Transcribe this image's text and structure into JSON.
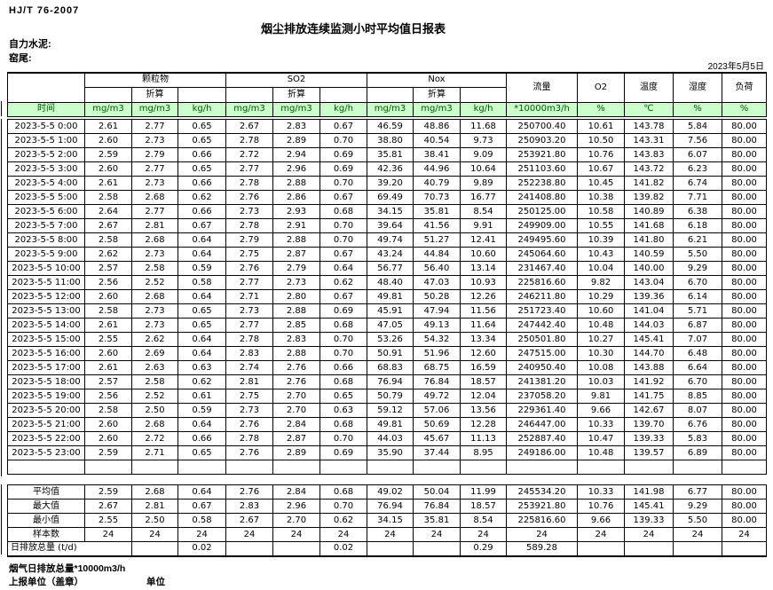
{
  "header": {
    "doc_code": "HJ/T 76-2007",
    "title": "烟尘排放连续监测小时平均值日报表",
    "company": "自力水泥:",
    "location": "窑尾:",
    "date": "2023年5月5日"
  },
  "table": {
    "time_header": "时间",
    "groups": [
      {
        "label": "颗粒物",
        "sub": "折算"
      },
      {
        "label": "SO2",
        "sub": "折算"
      },
      {
        "label": "Nox",
        "sub": "折算"
      }
    ],
    "singles": [
      {
        "label": "流量"
      },
      {
        "label": "O2"
      },
      {
        "label": "温度"
      },
      {
        "label": "湿度"
      },
      {
        "label": "负荷"
      }
    ],
    "units": [
      "mg/m3",
      "mg/m3",
      "kg/h",
      "mg/m3",
      "mg/m3",
      "kg/h",
      "mg/m3",
      "mg/m3",
      "kg/h",
      "*10000m3/h",
      "%",
      "℃",
      "%",
      "%"
    ],
    "rows": [
      {
        "time": "2023-5-5 0:00",
        "values": [
          "2.61",
          "2.77",
          "0.65",
          "2.67",
          "2.83",
          "0.67",
          "46.59",
          "48.86",
          "11.68",
          "250700.40",
          "10.61",
          "143.78",
          "5.84",
          "80.00"
        ]
      },
      {
        "time": "2023-5-5 1:00",
        "values": [
          "2.60",
          "2.73",
          "0.65",
          "2.78",
          "2.89",
          "0.70",
          "38.80",
          "40.54",
          "9.73",
          "250903.20",
          "10.50",
          "143.31",
          "7.56",
          "80.00"
        ]
      },
      {
        "time": "2023-5-5 2:00",
        "values": [
          "2.59",
          "2.79",
          "0.66",
          "2.72",
          "2.94",
          "0.69",
          "35.81",
          "38.41",
          "9.09",
          "253921.80",
          "10.76",
          "143.83",
          "6.07",
          "80.00"
        ]
      },
      {
        "time": "2023-5-5 3:00",
        "values": [
          "2.60",
          "2.77",
          "0.65",
          "2.77",
          "2.96",
          "0.69",
          "42.36",
          "44.96",
          "10.64",
          "251103.60",
          "10.67",
          "143.72",
          "6.23",
          "80.00"
        ]
      },
      {
        "time": "2023-5-5 4:00",
        "values": [
          "2.61",
          "2.73",
          "0.66",
          "2.78",
          "2.88",
          "0.70",
          "39.20",
          "40.79",
          "9.89",
          "252238.80",
          "10.45",
          "141.82",
          "6.74",
          "80.00"
        ]
      },
      {
        "time": "2023-5-5 5:00",
        "values": [
          "2.58",
          "2.68",
          "0.62",
          "2.76",
          "2.86",
          "0.67",
          "69.49",
          "70.73",
          "16.77",
          "241408.80",
          "10.38",
          "139.82",
          "7.71",
          "80.00"
        ]
      },
      {
        "time": "2023-5-5 6:00",
        "values": [
          "2.64",
          "2.77",
          "0.66",
          "2.73",
          "2.93",
          "0.68",
          "34.15",
          "35.81",
          "8.54",
          "250125.00",
          "10.58",
          "140.89",
          "6.38",
          "80.00"
        ]
      },
      {
        "time": "2023-5-5 7:00",
        "values": [
          "2.67",
          "2.81",
          "0.67",
          "2.78",
          "2.91",
          "0.70",
          "39.64",
          "41.56",
          "9.91",
          "249909.00",
          "10.55",
          "141.68",
          "6.18",
          "80.00"
        ]
      },
      {
        "time": "2023-5-5 8:00",
        "values": [
          "2.58",
          "2.68",
          "0.64",
          "2.79",
          "2.88",
          "0.70",
          "49.74",
          "51.27",
          "12.41",
          "249495.60",
          "10.39",
          "141.80",
          "6.21",
          "80.00"
        ]
      },
      {
        "time": "2023-5-5 9:00",
        "values": [
          "2.62",
          "2.73",
          "0.64",
          "2.75",
          "2.87",
          "0.67",
          "43.24",
          "44.84",
          "10.60",
          "245064.60",
          "10.43",
          "140.59",
          "5.50",
          "80.00"
        ]
      },
      {
        "time": "2023-5-5 10:00",
        "values": [
          "2.57",
          "2.58",
          "0.59",
          "2.76",
          "2.79",
          "0.64",
          "56.77",
          "56.40",
          "13.14",
          "231467.40",
          "10.04",
          "140.00",
          "9.29",
          "80.00"
        ]
      },
      {
        "time": "2023-5-5 11:00",
        "values": [
          "2.56",
          "2.52",
          "0.58",
          "2.77",
          "2.73",
          "0.62",
          "48.40",
          "47.03",
          "10.93",
          "225816.60",
          "9.82",
          "143.04",
          "6.70",
          "80.00"
        ]
      },
      {
        "time": "2023-5-5 12:00",
        "values": [
          "2.60",
          "2.68",
          "0.64",
          "2.71",
          "2.80",
          "0.67",
          "49.81",
          "50.28",
          "12.26",
          "246211.80",
          "10.29",
          "139.36",
          "6.14",
          "80.00"
        ]
      },
      {
        "time": "2023-5-5 13:00",
        "values": [
          "2.58",
          "2.73",
          "0.65",
          "2.73",
          "2.88",
          "0.69",
          "45.91",
          "47.94",
          "11.56",
          "251723.40",
          "10.60",
          "141.04",
          "5.71",
          "80.00"
        ]
      },
      {
        "time": "2023-5-5 14:00",
        "values": [
          "2.61",
          "2.73",
          "0.65",
          "2.77",
          "2.85",
          "0.68",
          "47.05",
          "49.13",
          "11.64",
          "247442.40",
          "10.48",
          "144.03",
          "6.87",
          "80.00"
        ]
      },
      {
        "time": "2023-5-5 15:00",
        "values": [
          "2.55",
          "2.62",
          "0.64",
          "2.78",
          "2.83",
          "0.70",
          "53.26",
          "54.32",
          "13.34",
          "250501.80",
          "10.27",
          "145.41",
          "7.07",
          "80.00"
        ]
      },
      {
        "time": "2023-5-5 16:00",
        "values": [
          "2.60",
          "2.69",
          "0.64",
          "2.83",
          "2.88",
          "0.70",
          "50.91",
          "51.96",
          "12.60",
          "247515.00",
          "10.30",
          "144.70",
          "6.48",
          "80.00"
        ]
      },
      {
        "time": "2023-5-5 17:00",
        "values": [
          "2.61",
          "2.63",
          "0.63",
          "2.74",
          "2.76",
          "0.66",
          "68.83",
          "68.75",
          "16.59",
          "240950.40",
          "10.08",
          "143.88",
          "6.64",
          "80.00"
        ]
      },
      {
        "time": "2023-5-5 18:00",
        "values": [
          "2.57",
          "2.58",
          "0.62",
          "2.81",
          "2.76",
          "0.68",
          "76.94",
          "76.84",
          "18.57",
          "241381.20",
          "10.03",
          "141.92",
          "6.70",
          "80.00"
        ]
      },
      {
        "time": "2023-5-5 19:00",
        "values": [
          "2.56",
          "2.52",
          "0.61",
          "2.75",
          "2.70",
          "0.65",
          "50.79",
          "49.72",
          "12.04",
          "237058.20",
          "9.81",
          "141.75",
          "8.85",
          "80.00"
        ]
      },
      {
        "time": "2023-5-5 20:00",
        "values": [
          "2.58",
          "2.50",
          "0.59",
          "2.73",
          "2.70",
          "0.63",
          "59.12",
          "57.06",
          "13.56",
          "229361.40",
          "9.66",
          "142.67",
          "8.07",
          "80.00"
        ]
      },
      {
        "time": "2023-5-5 21:00",
        "values": [
          "2.60",
          "2.68",
          "0.64",
          "2.76",
          "2.84",
          "0.68",
          "49.81",
          "50.69",
          "12.28",
          "246447.00",
          "10.33",
          "139.70",
          "6.76",
          "80.00"
        ]
      },
      {
        "time": "2023-5-5 22:00",
        "values": [
          "2.60",
          "2.72",
          "0.66",
          "2.78",
          "2.87",
          "0.70",
          "44.03",
          "45.67",
          "11.13",
          "252887.40",
          "10.47",
          "139.33",
          "5.83",
          "80.00"
        ]
      },
      {
        "time": "2023-5-5 23:00",
        "values": [
          "2.59",
          "2.71",
          "0.65",
          "2.76",
          "2.89",
          "0.69",
          "35.90",
          "37.44",
          "8.95",
          "249186.00",
          "10.48",
          "139.57",
          "6.89",
          "80.00"
        ]
      }
    ],
    "summary": [
      {
        "label": "平均值",
        "values": [
          "2.59",
          "2.68",
          "0.64",
          "2.76",
          "2.84",
          "0.68",
          "49.02",
          "50.04",
          "11.99",
          "245534.20",
          "10.33",
          "141.98",
          "6.77",
          "80.00"
        ]
      },
      {
        "label": "最大值",
        "values": [
          "2.67",
          "2.81",
          "0.67",
          "2.83",
          "2.96",
          "0.70",
          "76.94",
          "76.84",
          "18.57",
          "253921.80",
          "10.76",
          "145.41",
          "9.29",
          "80.00"
        ]
      },
      {
        "label": "最小值",
        "values": [
          "2.55",
          "2.50",
          "0.58",
          "2.67",
          "2.70",
          "0.62",
          "34.15",
          "35.81",
          "8.54",
          "225816.60",
          "9.66",
          "139.33",
          "5.50",
          "80.00"
        ]
      },
      {
        "label": "样本数",
        "values": [
          "24",
          "24",
          "24",
          "24",
          "24",
          "24",
          "24",
          "24",
          "24",
          "24",
          "24",
          "24",
          "24",
          "24"
        ]
      }
    ],
    "daily_total": {
      "label": "日排放总量 (t/d)",
      "values": [
        "",
        "0.02",
        "",
        "",
        "0.02",
        "",
        "",
        "0.29",
        "589.28",
        "",
        "",
        "",
        ""
      ]
    }
  },
  "footer": {
    "flue_total": "烟气日排放总量*10000m3/h",
    "report_unit": "上报单位（盖章）",
    "unit": "单位"
  },
  "colors": {
    "header_green_bg": "#ccffcc",
    "header_green_text": "#005700"
  }
}
